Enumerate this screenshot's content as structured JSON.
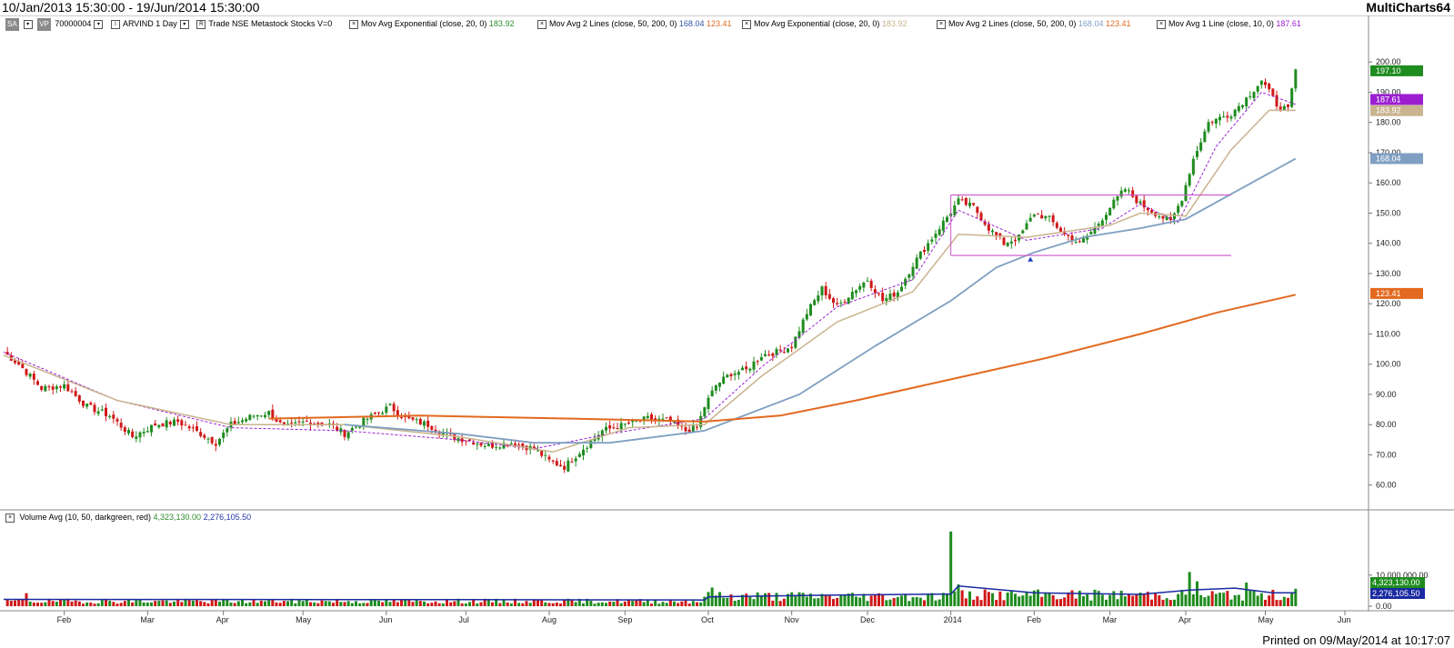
{
  "window": {
    "date_range": "10/Jan/2013 15:30:00 - 19/Jun/2014 15:30:00",
    "app_name": "MultiCharts64",
    "printed": "Printed on 09/May/2014 at 10:17:07"
  },
  "toolbar": {
    "sa_tag": "SA",
    "vp_tag": "VP",
    "symbol_id": "70000004",
    "instrument": "ARVIND 1 Day",
    "source": "Trade NSE Metastock Stocks V=0"
  },
  "indicators": [
    {
      "label": "Mov Avg Exponential",
      "params": "(close, 20, 0)",
      "values": [
        "183.92"
      ],
      "colors": [
        "#2e8b2e"
      ]
    },
    {
      "label": "Mov Avg 2 Lines",
      "params": "(close, 50, 200, 0)",
      "values": [
        "168.04",
        "123.41"
      ],
      "colors": [
        "#3355aa",
        "#e2691f"
      ]
    },
    {
      "label": "Mov Avg Exponential",
      "params": "(close, 20, 0)",
      "values": [
        "183.92"
      ],
      "colors": [
        "#c9b48f"
      ]
    },
    {
      "label": "Mov Avg 2 Lines",
      "params": "(close, 50, 200, 0)",
      "values": [
        "168.04",
        "123.41"
      ],
      "colors": [
        "#7f9fc2",
        "#e2691f"
      ]
    },
    {
      "label": "Mov Avg 1 Line",
      "params": "(close, 10, 0)",
      "values": [
        "187.61"
      ],
      "colors": [
        "#9b1fd1"
      ]
    }
  ],
  "volume_indicator": {
    "label": "Volume Avg",
    "params": "(10, 50, darkgreen, red)",
    "values": [
      "4,323,130.00",
      "2,276,105.50"
    ],
    "colors": [
      "#2e8b2e",
      "#2233aa"
    ]
  },
  "chart_data": {
    "type": "candlestick",
    "x_labels": [
      "Feb",
      "Mar",
      "Apr",
      "May",
      "Jun",
      "Jul",
      "Aug",
      "Sep",
      "Oct",
      "Nov",
      "Dec",
      "2014",
      "Feb",
      "Mar",
      "Apr",
      "May",
      "Jun"
    ],
    "x_positions_index": [
      16,
      38,
      58,
      79,
      101,
      122,
      144,
      164,
      186,
      208,
      228,
      250,
      272,
      292,
      312,
      333,
      354
    ],
    "price_ticks": [
      "60.00",
      "70.00",
      "80.00",
      "90.00",
      "100.00",
      "110.00",
      "120.00",
      "130.00",
      "140.00",
      "150.00",
      "160.00",
      "170.00",
      "180.00",
      "190.00",
      "200.00"
    ],
    "price_ylim": [
      53,
      210
    ],
    "volume_ticks": [
      "0.00",
      "10,000,000.00"
    ],
    "volume_ylim": [
      0,
      26000000
    ],
    "close_path": [
      [
        0,
        104
      ],
      [
        4,
        100
      ],
      [
        10,
        92
      ],
      [
        16,
        93
      ],
      [
        22,
        86
      ],
      [
        28,
        83
      ],
      [
        34,
        76
      ],
      [
        40,
        80
      ],
      [
        46,
        81
      ],
      [
        52,
        77
      ],
      [
        56,
        74
      ],
      [
        60,
        80
      ],
      [
        66,
        83
      ],
      [
        70,
        84
      ],
      [
        74,
        79
      ],
      [
        80,
        81
      ],
      [
        86,
        80
      ],
      [
        90,
        77
      ],
      [
        96,
        82
      ],
      [
        102,
        86
      ],
      [
        106,
        82
      ],
      [
        112,
        80
      ],
      [
        118,
        76
      ],
      [
        122,
        75
      ],
      [
        128,
        73
      ],
      [
        134,
        74
      ],
      [
        140,
        72
      ],
      [
        144,
        68
      ],
      [
        148,
        66
      ],
      [
        152,
        71
      ],
      [
        158,
        78
      ],
      [
        164,
        80
      ],
      [
        170,
        82
      ],
      [
        176,
        81
      ],
      [
        180,
        78
      ],
      [
        183,
        79
      ],
      [
        185,
        86
      ],
      [
        188,
        93
      ],
      [
        192,
        97
      ],
      [
        196,
        98
      ],
      [
        200,
        103
      ],
      [
        204,
        104
      ],
      [
        208,
        106
      ],
      [
        212,
        117
      ],
      [
        216,
        125
      ],
      [
        220,
        119
      ],
      [
        224,
        124
      ],
      [
        228,
        128
      ],
      [
        232,
        121
      ],
      [
        236,
        124
      ],
      [
        240,
        133
      ],
      [
        244,
        140
      ],
      [
        248,
        147
      ],
      [
        252,
        154
      ],
      [
        256,
        152
      ],
      [
        260,
        145
      ],
      [
        264,
        140
      ],
      [
        268,
        142
      ],
      [
        272,
        150
      ],
      [
        276,
        148
      ],
      [
        280,
        143
      ],
      [
        284,
        140
      ],
      [
        288,
        145
      ],
      [
        292,
        152
      ],
      [
        296,
        158
      ],
      [
        300,
        153
      ],
      [
        304,
        150
      ],
      [
        308,
        147
      ],
      [
        311,
        155
      ],
      [
        314,
        168
      ],
      [
        318,
        180
      ],
      [
        324,
        183
      ],
      [
        328,
        188
      ],
      [
        332,
        194
      ],
      [
        336,
        186
      ],
      [
        339,
        184
      ],
      [
        341,
        197
      ]
    ],
    "current_price": "197.10",
    "series": [
      {
        "name": "Mov Avg 1 Line (close, 10, 0)",
        "value": "187.61",
        "path": [
          [
            0,
            104
          ],
          [
            30,
            88
          ],
          [
            60,
            79
          ],
          [
            90,
            78
          ],
          [
            120,
            75
          ],
          [
            140,
            72
          ],
          [
            160,
            77
          ],
          [
            185,
            82
          ],
          [
            200,
            99
          ],
          [
            220,
            119
          ],
          [
            240,
            128
          ],
          [
            252,
            151
          ],
          [
            270,
            141
          ],
          [
            290,
            145
          ],
          [
            300,
            153
          ],
          [
            310,
            147
          ],
          [
            320,
            172
          ],
          [
            332,
            190
          ],
          [
            341,
            186
          ]
        ]
      },
      {
        "name": "Mov Avg Exponential (close, 20, 0)",
        "value": "183.92",
        "path": [
          [
            0,
            103
          ],
          [
            30,
            88
          ],
          [
            60,
            80
          ],
          [
            90,
            80
          ],
          [
            120,
            76
          ],
          [
            145,
            71
          ],
          [
            165,
            79
          ],
          [
            185,
            80
          ],
          [
            200,
            96
          ],
          [
            220,
            114
          ],
          [
            240,
            124
          ],
          [
            252,
            143
          ],
          [
            270,
            142
          ],
          [
            292,
            146
          ],
          [
            300,
            150
          ],
          [
            312,
            149
          ],
          [
            324,
            171
          ],
          [
            334,
            184
          ],
          [
            341,
            184
          ]
        ]
      },
      {
        "name": "Mov Avg (close, 50)",
        "value": "168.04",
        "path": [
          [
            90,
            80
          ],
          [
            120,
            77
          ],
          [
            140,
            74
          ],
          [
            160,
            74
          ],
          [
            185,
            78
          ],
          [
            210,
            90
          ],
          [
            230,
            106
          ],
          [
            250,
            121
          ],
          [
            262,
            132
          ],
          [
            272,
            137
          ],
          [
            285,
            142
          ],
          [
            300,
            145
          ],
          [
            312,
            148
          ],
          [
            325,
            157
          ],
          [
            341,
            168
          ]
        ]
      },
      {
        "name": "Mov Avg (close, 200)",
        "value": "123.41",
        "path": [
          [
            70,
            82
          ],
          [
            110,
            83
          ],
          [
            150,
            82
          ],
          [
            185,
            81
          ],
          [
            205,
            83
          ],
          [
            225,
            88
          ],
          [
            250,
            95
          ],
          [
            275,
            102
          ],
          [
            300,
            110
          ],
          [
            320,
            117
          ],
          [
            341,
            123
          ]
        ]
      }
    ],
    "annotations": [
      {
        "type": "box",
        "x_from": 250,
        "x_to": 324,
        "y_from": 136,
        "y_to": 156,
        "color": "#cc55cc"
      }
    ],
    "badge_values": [
      "197.10",
      "187.61",
      "183.92",
      "168.04",
      "123.41"
    ],
    "volume_badges": [
      "4,323,130.00",
      "2,276,105.50"
    ]
  }
}
